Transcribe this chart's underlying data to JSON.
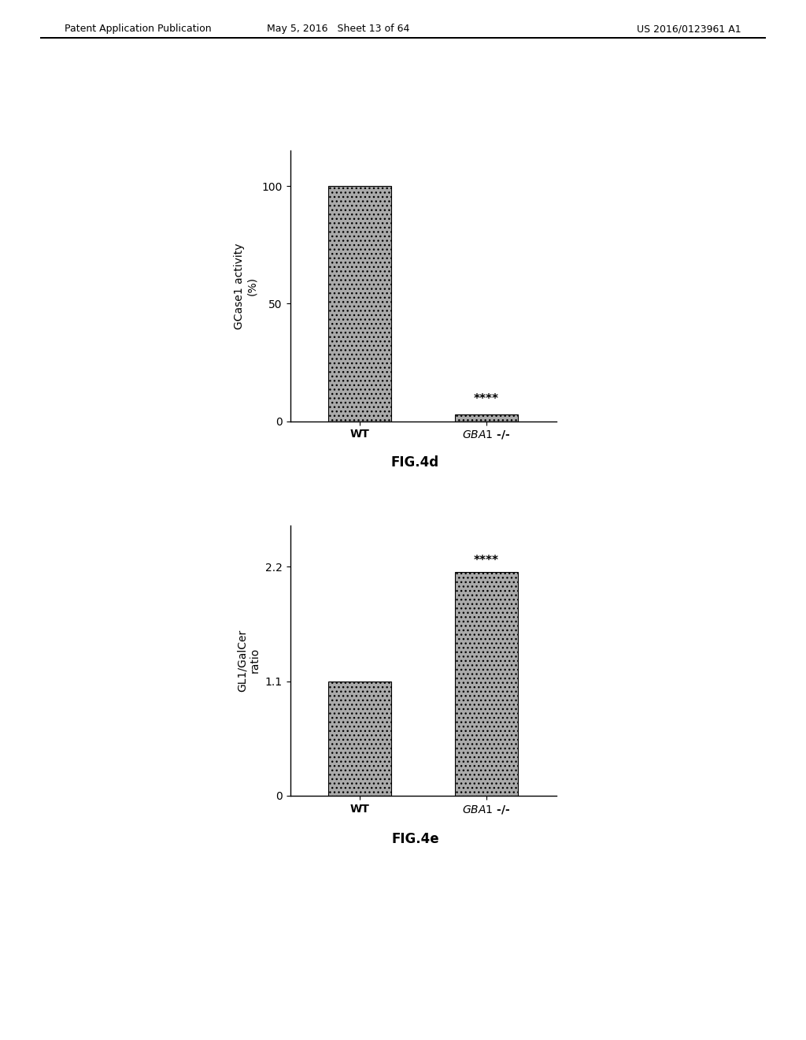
{
  "header_left": "Patent Application Publication",
  "header_center": "May 5, 2016   Sheet 13 of 64",
  "header_right": "US 2016/0123961 A1",
  "chart1": {
    "categories": [
      "WT",
      "GBA1 -/-"
    ],
    "values": [
      100,
      3
    ],
    "ylabel_line1": "GCase1 activity",
    "ylabel_line2": "(%)",
    "yticks": [
      0,
      50,
      100
    ],
    "ylim": [
      0,
      115
    ],
    "bar_color": "#aaaaaa",
    "significance_label": "****",
    "sig_bar_index": 1,
    "fig_label": "FIG.4d"
  },
  "chart2": {
    "categories": [
      "WT",
      "GBA1 -/-"
    ],
    "values": [
      1.1,
      2.15
    ],
    "ylabel_line1": "GL1/GalCer",
    "ylabel_line2": "ratio",
    "yticks": [
      0,
      1.1,
      2.2
    ],
    "ylim": [
      0,
      2.6
    ],
    "bar_color": "#aaaaaa",
    "significance_label": "****",
    "sig_bar_index": 1,
    "fig_label": "FIG.4e"
  },
  "background_color": "#ffffff",
  "hatch_pattern": "...",
  "bar_width": 0.5,
  "font_color": "#000000"
}
